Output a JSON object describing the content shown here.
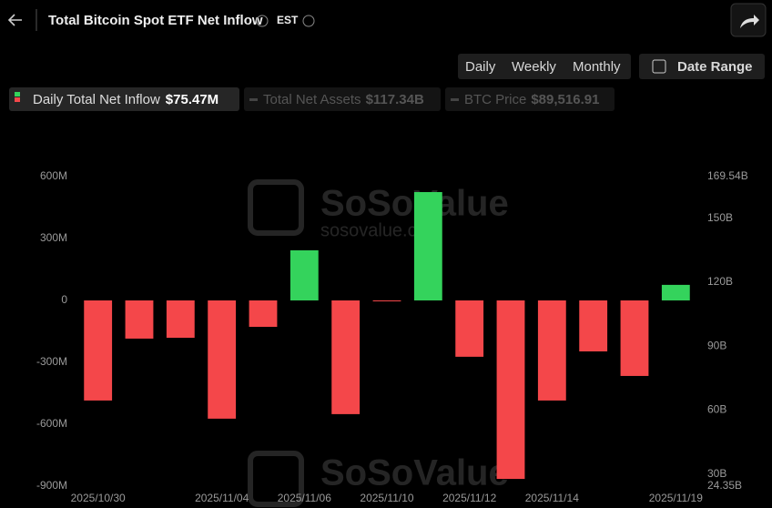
{
  "header": {
    "title": "Total Bitcoin Spot ETF Net Inflow",
    "timezone": "EST",
    "buttons": [
      "Daily",
      "Weekly",
      "Monthly"
    ],
    "active_button": 0,
    "date_range": "Date Range"
  },
  "legend_extra": [
    {
      "name": "Total Net Assets",
      "latest": "$117.34B"
    },
    {
      "name": "BTC Price",
      "latest": "$89,516.91"
    }
  ],
  "watermark": {
    "brand": "SoSoValue",
    "site": "sosovalue.com"
  },
  "chart_data": {
    "type": "bar",
    "categories": [
      "2025/10/30",
      null,
      null,
      "2025/11/04",
      null,
      "2025/11/06",
      null,
      "2025/11/10",
      null,
      "2025/11/12",
      null,
      "2025/11/14",
      null,
      null,
      "2025/11/19"
    ],
    "series": [
      {
        "name": "Daily Total Net Inflow",
        "latest_label": "$75.47M",
        "positive_color": "#34d35c",
        "negative_color": "#f4474a",
        "values": [
          -485,
          -185,
          -181,
          -573,
          -128,
          243,
          -551,
          -2,
          525,
          -273,
          -865,
          -485,
          -247,
          -366,
          75.47
        ]
      }
    ],
    "ylim": [
      -900,
      600
    ],
    "yticks": [
      {
        "value": 600,
        "label": "600M"
      },
      {
        "value": 300,
        "label": "300M"
      },
      0,
      {
        "value": -300,
        "label": "-300M"
      },
      {
        "value": -600,
        "label": "-600M"
      },
      {
        "value": -900,
        "label": "-900M"
      }
    ],
    "y2lim": [
      24.35,
      169.54
    ],
    "y2ticks": [
      {
        "value": 169.54,
        "label": "169.54B"
      },
      {
        "value": 150,
        "label": "150B"
      },
      {
        "value": 120,
        "label": "120B"
      },
      {
        "value": 90,
        "label": "90B"
      },
      {
        "value": 60,
        "label": "60B"
      },
      {
        "value": 30,
        "label": "30B"
      },
      {
        "value": 24.35,
        "label": "24.35B"
      }
    ],
    "grid": false
  }
}
